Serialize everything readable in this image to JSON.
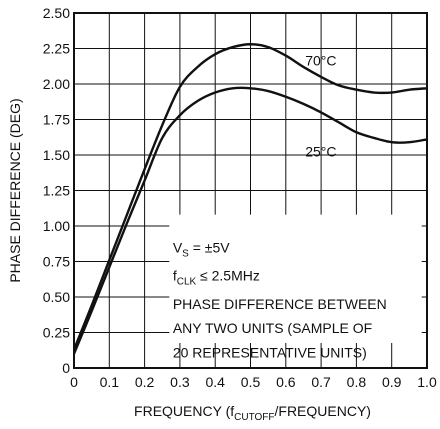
{
  "chart_data": {
    "type": "line",
    "title": "",
    "xlabel": {
      "main": "FREQUENCY (f",
      "sub": "CUTOFF",
      "tail": "/FREQUENCY)"
    },
    "ylabel": "PHASE DIFFERENCE (DEG)",
    "xlim": [
      0,
      1.0
    ],
    "ylim": [
      0,
      2.5
    ],
    "x_ticks": [
      0,
      0.1,
      0.2,
      0.3,
      0.4,
      0.5,
      0.6,
      0.7,
      0.8,
      0.9,
      1.0
    ],
    "x_tick_labels": [
      "0",
      "0.1",
      "0.2",
      "0.3",
      "0.4",
      "0.5",
      "0.6",
      "0.7",
      "0.8",
      "0.9",
      "1.0"
    ],
    "y_ticks": [
      0,
      0.25,
      0.5,
      0.75,
      1.0,
      1.25,
      1.5,
      1.75,
      2.0,
      2.25,
      2.5
    ],
    "y_tick_labels": [
      "0",
      "0.25",
      "0.50",
      "0.75",
      "1.00",
      "1.25",
      "1.50",
      "1.75",
      "2.00",
      "2.25",
      "2.50"
    ],
    "grid": true,
    "series": [
      {
        "name": "70°C",
        "x": [
          0,
          0.05,
          0.1,
          0.15,
          0.2,
          0.25,
          0.3,
          0.35,
          0.4,
          0.45,
          0.5,
          0.55,
          0.6,
          0.65,
          0.7,
          0.75,
          0.8,
          0.85,
          0.9,
          0.95,
          1.0
        ],
        "y": [
          0.13,
          0.44,
          0.76,
          1.08,
          1.4,
          1.71,
          1.98,
          2.12,
          2.21,
          2.26,
          2.28,
          2.26,
          2.2,
          2.12,
          2.05,
          1.99,
          1.96,
          1.94,
          1.94,
          1.96,
          1.97
        ]
      },
      {
        "name": "25°C",
        "x": [
          0,
          0.05,
          0.1,
          0.15,
          0.2,
          0.25,
          0.3,
          0.35,
          0.4,
          0.45,
          0.5,
          0.55,
          0.6,
          0.65,
          0.7,
          0.75,
          0.8,
          0.85,
          0.9,
          0.95,
          1.0
        ],
        "y": [
          0.1,
          0.4,
          0.71,
          1.02,
          1.32,
          1.62,
          1.78,
          1.88,
          1.94,
          1.97,
          1.97,
          1.95,
          1.91,
          1.86,
          1.8,
          1.73,
          1.66,
          1.62,
          1.59,
          1.59,
          1.61
        ]
      }
    ],
    "series_labels": [
      "70°C",
      "25°C"
    ],
    "annotation": {
      "vs_label": "V",
      "vs_sub": "S",
      "vs_value": " = ±5V",
      "fclk_label": "f",
      "fclk_sub": "CLK",
      "fclk_value": " ≤ 2.5MHz",
      "line3": "PHASE DIFFERENCE BETWEEN",
      "line4": "ANY TWO UNITS (SAMPLE OF",
      "line5": "20 REPRESENTATIVE UNITS)"
    }
  }
}
